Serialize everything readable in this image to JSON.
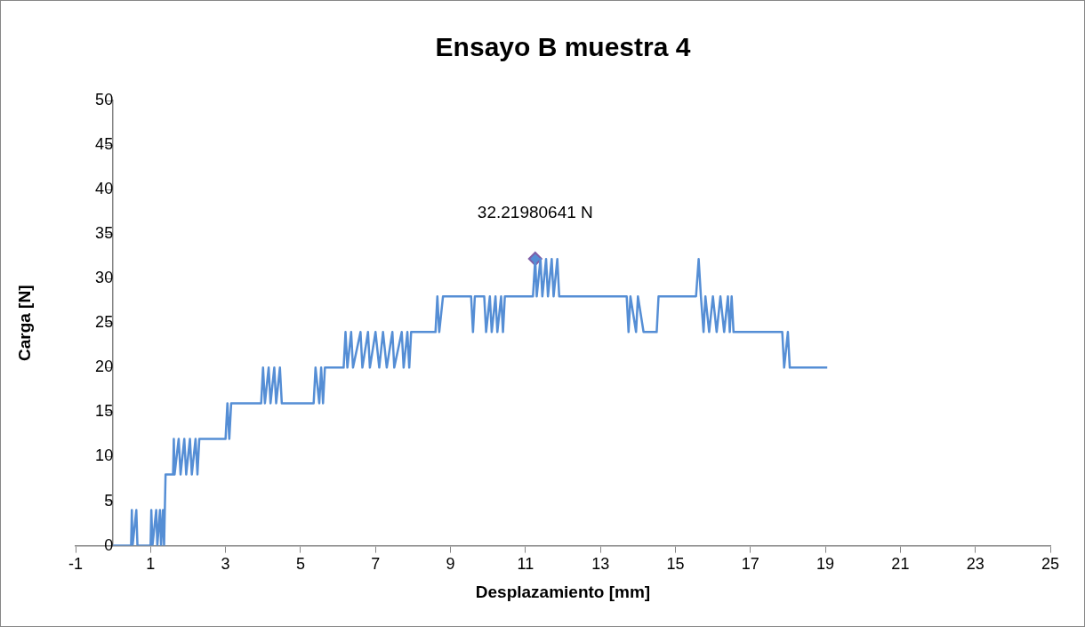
{
  "chart_data": {
    "type": "line",
    "title": "Ensayo B muestra 4",
    "xlabel": "Desplazamiento [mm]",
    "ylabel": "Carga [N]",
    "xlim": [
      -1,
      25
    ],
    "xticks": [
      -1,
      1,
      3,
      5,
      7,
      9,
      11,
      13,
      15,
      17,
      19,
      21,
      23,
      25
    ],
    "ylim": [
      0,
      50
    ],
    "yticks": [
      0,
      5,
      10,
      15,
      20,
      25,
      30,
      35,
      40,
      45,
      50
    ],
    "grid": false,
    "legend": false,
    "series": [
      {
        "type": "line",
        "color": "#558ed5",
        "marker": "none",
        "x": [
          0,
          0.48,
          0.5,
          0.52,
          0.62,
          0.65,
          1.0,
          1.02,
          1.05,
          1.15,
          1.18,
          1.25,
          1.28,
          1.33,
          1.36,
          1.38,
          1.4,
          1.6,
          1.62,
          1.64,
          1.75,
          1.8,
          1.9,
          1.95,
          2.05,
          2.1,
          2.2,
          2.25,
          2.3,
          3.0,
          3.05,
          3.1,
          3.15,
          3.95,
          4.0,
          4.05,
          4.15,
          4.2,
          4.3,
          4.35,
          4.45,
          4.5,
          5.35,
          5.4,
          5.5,
          5.55,
          5.6,
          5.65,
          6.15,
          6.2,
          6.25,
          6.35,
          6.4,
          6.6,
          6.65,
          6.8,
          6.85,
          7.0,
          7.1,
          7.2,
          7.3,
          7.45,
          7.5,
          7.7,
          7.75,
          7.85,
          7.9,
          7.95,
          8.6,
          8.65,
          8.7,
          8.8,
          9.55,
          9.6,
          9.65,
          9.9,
          9.95,
          10.05,
          10.1,
          10.2,
          10.25,
          10.35,
          10.4,
          10.45,
          11.2,
          11.26,
          11.3,
          11.4,
          11.45,
          11.55,
          11.6,
          11.7,
          11.75,
          11.85,
          11.9,
          13.7,
          13.75,
          13.8,
          13.95,
          14.0,
          14.15,
          14.5,
          14.55,
          15.55,
          15.62,
          15.68,
          15.75,
          15.8,
          15.9,
          16.0,
          16.1,
          16.2,
          16.3,
          16.4,
          16.45,
          16.5,
          16.55,
          17.85,
          17.9,
          18.0,
          18.05,
          18.1,
          19.05
        ],
        "values": [
          0,
          0,
          4,
          0,
          4,
          0,
          0,
          4,
          0,
          4,
          0,
          4,
          0,
          4,
          0,
          4,
          8,
          8,
          12,
          8,
          12,
          8,
          12,
          8,
          12,
          8,
          12,
          8,
          12,
          12,
          16,
          12,
          16,
          16,
          20,
          16,
          20,
          16,
          20,
          16,
          20,
          16,
          16,
          20,
          16,
          20,
          16,
          20,
          20,
          24,
          20,
          24,
          20,
          24,
          20,
          24,
          20,
          24,
          20,
          24,
          20,
          24,
          20,
          24,
          20,
          24,
          20,
          24,
          24,
          28,
          24,
          28,
          28,
          24,
          28,
          28,
          24,
          28,
          24,
          28,
          24,
          28,
          24,
          28,
          28,
          32.21980641,
          28,
          32.2,
          28,
          32.2,
          28,
          32.2,
          28,
          32.2,
          28,
          28,
          24,
          28,
          24,
          28,
          24,
          24,
          28,
          28,
          32.2,
          28,
          24,
          28,
          24,
          28,
          24,
          28,
          24,
          28,
          24,
          28,
          24,
          24,
          20,
          24,
          20,
          20,
          20
        ]
      },
      {
        "type": "scatter",
        "color": "#7f5fa8",
        "marker": "diamond",
        "x": [
          11.26
        ],
        "values": [
          32.21980641
        ]
      }
    ],
    "annotations": [
      {
        "text": "32.21980641 N",
        "x": 11.26,
        "y": 32.21980641
      }
    ]
  }
}
